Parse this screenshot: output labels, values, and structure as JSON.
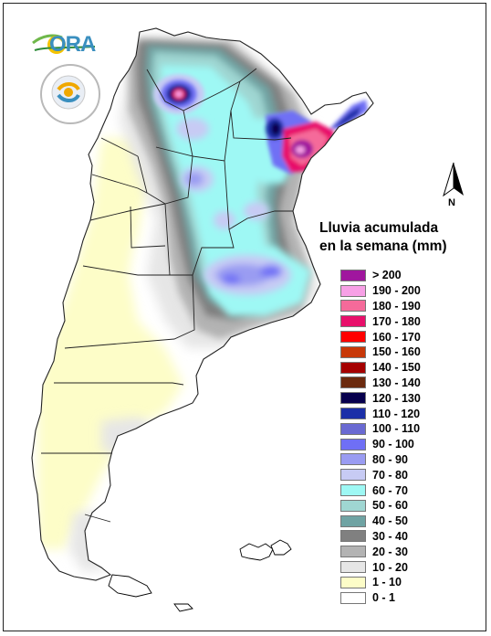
{
  "logo": {
    "text": "ORA"
  },
  "seal": {
    "text": "SERVICIO METEOROLÓGICO NACIONAL · ARGENTINA"
  },
  "north": {
    "label": "N"
  },
  "legend": {
    "title_line1": "Lluvia acumulada",
    "title_line2": "en la semana (mm)",
    "items": [
      {
        "label": "> 200",
        "color": "#a0169e"
      },
      {
        "label": "190 - 200",
        "color": "#f7a0e6"
      },
      {
        "label": "180 - 190",
        "color": "#f56a9a"
      },
      {
        "label": "170 - 180",
        "color": "#e8106b"
      },
      {
        "label": "160 - 170",
        "color": "#ff0000"
      },
      {
        "label": "150 - 160",
        "color": "#c83808"
      },
      {
        "label": "140 - 150",
        "color": "#a50000"
      },
      {
        "label": "130 - 140",
        "color": "#6b2a0e"
      },
      {
        "label": "120 - 130",
        "color": "#07004d"
      },
      {
        "label": "110 - 120",
        "color": "#1b2fa8"
      },
      {
        "label": "100 - 110",
        "color": "#6a6ad2"
      },
      {
        "label": "90 - 100",
        "color": "#6f6ff5"
      },
      {
        "label": "80 - 90",
        "color": "#9a9cf2"
      },
      {
        "label": "70 - 80",
        "color": "#c7cbf4"
      },
      {
        "label": "60 - 70",
        "color": "#9ef8f4"
      },
      {
        "label": "50 - 60",
        "color": "#9fd6d2"
      },
      {
        "label": "40 - 50",
        "color": "#6fa3a3"
      },
      {
        "label": "30 - 40",
        "color": "#808080"
      },
      {
        "label": "20 - 30",
        "color": "#b3b3b3"
      },
      {
        "label": "10 - 20",
        "color": "#e6e6e6"
      },
      {
        "label": "1 - 10",
        "color": "#fdfdc8"
      },
      {
        "label": "0 - 1",
        "color": "#ffffff"
      }
    ]
  }
}
